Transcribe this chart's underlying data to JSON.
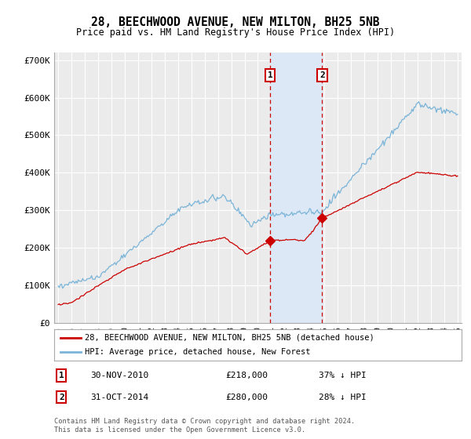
{
  "title": "28, BEECHWOOD AVENUE, NEW MILTON, BH25 5NB",
  "subtitle": "Price paid vs. HM Land Registry's House Price Index (HPI)",
  "ylim": [
    0,
    720000
  ],
  "yticks": [
    0,
    100000,
    200000,
    300000,
    400000,
    500000,
    600000,
    700000
  ],
  "ytick_labels": [
    "£0",
    "£100K",
    "£200K",
    "£300K",
    "£400K",
    "£500K",
    "£600K",
    "£700K"
  ],
  "background_color": "#ffffff",
  "plot_bg_color": "#ebebeb",
  "grid_color": "#ffffff",
  "hpi_color": "#7ab4d8",
  "price_color": "#cc0000",
  "sale1_date": 2010.92,
  "sale1_price": 218000,
  "sale1_label": "1",
  "sale2_date": 2014.83,
  "sale2_price": 280000,
  "sale2_label": "2",
  "shade_color": "#dce8f5",
  "footer": "Contains HM Land Registry data © Crown copyright and database right 2024.\nThis data is licensed under the Open Government Licence v3.0.",
  "legend_line1": "28, BEECHWOOD AVENUE, NEW MILTON, BH25 5NB (detached house)",
  "legend_line2": "HPI: Average price, detached house, New Forest",
  "xlim_left": 1994.7,
  "xlim_right": 2025.3
}
